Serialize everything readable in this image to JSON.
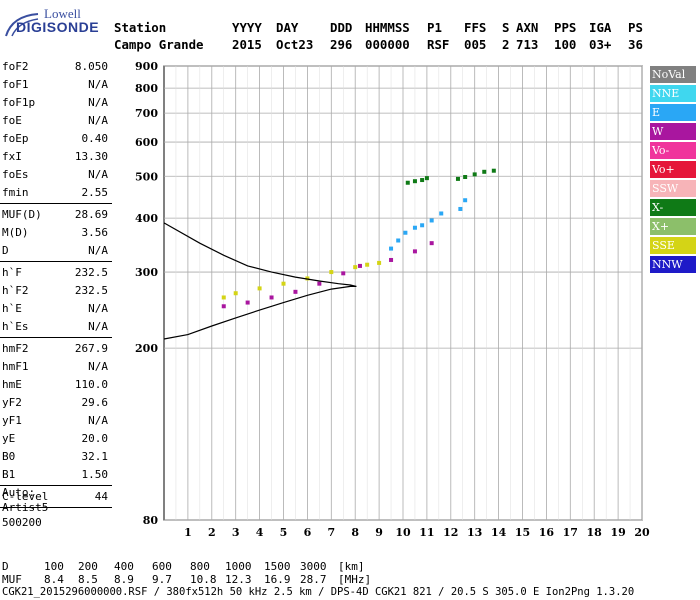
{
  "logo": {
    "line1": "Lowell",
    "line2": "DIGISONDE"
  },
  "header": {
    "row1": [
      "Station",
      "YYYY",
      "DAY",
      "DDD",
      "HHMMSS",
      "P1",
      "FFS",
      "S",
      "AXN",
      "PPS",
      "IGA",
      "PS"
    ],
    "row2": [
      "Campo Grande",
      "2015",
      "Oct23",
      "296",
      "000000",
      "RSF",
      "005",
      "2",
      "713",
      "100",
      "03+",
      "36"
    ]
  },
  "params": [
    {
      "group": [
        {
          "k": "foF2",
          "v": "8.050"
        },
        {
          "k": "foF1",
          "v": "N/A"
        },
        {
          "k": "foF1p",
          "v": "N/A"
        },
        {
          "k": "foE",
          "v": "N/A"
        },
        {
          "k": "foEp",
          "v": "0.40"
        },
        {
          "k": "fxI",
          "v": "13.30"
        },
        {
          "k": "foEs",
          "v": "N/A"
        },
        {
          "k": "fmin",
          "v": "2.55"
        }
      ]
    },
    {
      "group": [
        {
          "k": "MUF(D)",
          "v": "28.69"
        },
        {
          "k": "M(D)",
          "v": "3.56"
        },
        {
          "k": "D",
          "v": "N/A"
        }
      ]
    },
    {
      "group": [
        {
          "k": "h`F",
          "v": "232.5"
        },
        {
          "k": "h`F2",
          "v": "232.5"
        },
        {
          "k": "h`E",
          "v": "N/A"
        },
        {
          "k": "h`Es",
          "v": "N/A"
        }
      ]
    },
    {
      "group": [
        {
          "k": "hmF2",
          "v": "267.9"
        },
        {
          "k": "hmF1",
          "v": "N/A"
        },
        {
          "k": "hmE",
          "v": "110.0"
        },
        {
          "k": "yF2",
          "v": "29.6"
        },
        {
          "k": "yF1",
          "v": "N/A"
        },
        {
          "k": "yE",
          "v": "20.0"
        },
        {
          "k": "B0",
          "v": "32.1"
        },
        {
          "k": "B1",
          "v": "1.50"
        }
      ]
    },
    {
      "group": [
        {
          "k": "C-level",
          "v": "44"
        }
      ]
    }
  ],
  "auto_note": [
    "Auto:",
    "Artist5",
    "500200"
  ],
  "legend": [
    {
      "label": "NoVal",
      "color": "#808080"
    },
    {
      "label": "NNE",
      "color": "#3fd7ef"
    },
    {
      "label": "E",
      "color": "#2aa7f5"
    },
    {
      "label": "W",
      "color": "#a9169f"
    },
    {
      "label": "Vo-",
      "color": "#f0349c"
    },
    {
      "label": "Vo+",
      "color": "#e5163a"
    },
    {
      "label": "SSW",
      "color": "#f7b4b8"
    },
    {
      "label": "X-",
      "color": "#0f7a16"
    },
    {
      "label": "X+",
      "color": "#8cbf6a"
    },
    {
      "label": "SSE",
      "color": "#d4d416"
    },
    {
      "label": "NNW",
      "color": "#1e1ac8"
    }
  ],
  "chart_data": {
    "type": "scatter",
    "xlabel": "",
    "ylabel": "",
    "xlim": [
      0,
      20
    ],
    "ylim": [
      80,
      900
    ],
    "x_ticks": [
      1,
      2,
      3,
      4,
      5,
      6,
      7,
      8,
      9,
      10,
      11,
      12,
      13,
      14,
      15,
      16,
      17,
      18,
      19,
      20
    ],
    "y_ticks": [
      80,
      200,
      300,
      400,
      500,
      600,
      700,
      800,
      900
    ],
    "grid": true,
    "y_scale": "log",
    "series": [
      {
        "name": "X-",
        "color": "#0f7a16",
        "x": [
          10.2,
          10.5,
          10.8,
          11.0,
          12.3,
          12.6,
          13.0,
          13.4,
          13.8
        ],
        "y": [
          483,
          487,
          490,
          495,
          493,
          498,
          505,
          512,
          515
        ]
      },
      {
        "name": "E",
        "color": "#2aa7f5",
        "x": [
          9.5,
          9.8,
          10.1,
          10.5,
          10.8,
          11.2,
          11.6,
          12.4,
          12.6
        ],
        "y": [
          340,
          355,
          370,
          380,
          385,
          395,
          410,
          420,
          440
        ]
      },
      {
        "name": "W",
        "color": "#a9169f",
        "x": [
          2.5,
          3.5,
          4.5,
          5.5,
          6.5,
          7.5,
          8.2,
          9.5,
          10.5,
          11.2
        ],
        "y": [
          250,
          255,
          262,
          270,
          282,
          298,
          310,
          320,
          335,
          350
        ]
      },
      {
        "name": "SSE",
        "color": "#d4d416",
        "x": [
          2.5,
          3.0,
          4.0,
          5.0,
          6.0,
          7.0,
          8.0,
          8.5,
          9.0
        ],
        "y": [
          262,
          268,
          275,
          282,
          290,
          300,
          308,
          312,
          315
        ]
      }
    ],
    "profile": {
      "x": [
        0.0,
        1.5,
        2.5,
        3.5,
        4.5,
        5.5,
        6.5,
        7.3,
        7.8,
        8.05,
        7.8,
        7.0,
        6.0,
        5.0,
        4.0,
        3.0,
        2.0,
        1.0,
        0.0
      ],
      "y": [
        390,
        350,
        328,
        310,
        300,
        292,
        286,
        282,
        280,
        278,
        278,
        274,
        265,
        255,
        245,
        235,
        225,
        215,
        210
      ]
    }
  },
  "footer": {
    "d_label": "D",
    "d_values": [
      "100",
      "200",
      "400",
      "600",
      "800",
      "1000",
      "1500",
      "3000",
      "[km]"
    ],
    "muf_label": "MUF",
    "muf_values": [
      "8.4",
      "8.5",
      "8.9",
      "9.7",
      "10.8",
      "12.3",
      "16.9",
      "28.7",
      "[MHz]"
    ],
    "info": "CGK21_2015296000000.RSF / 380fx512h 50 kHz 2.5 km / DPS-4D CGK21 821 / 20.5 S 305.0 E Ion2Png 1.3.20"
  }
}
